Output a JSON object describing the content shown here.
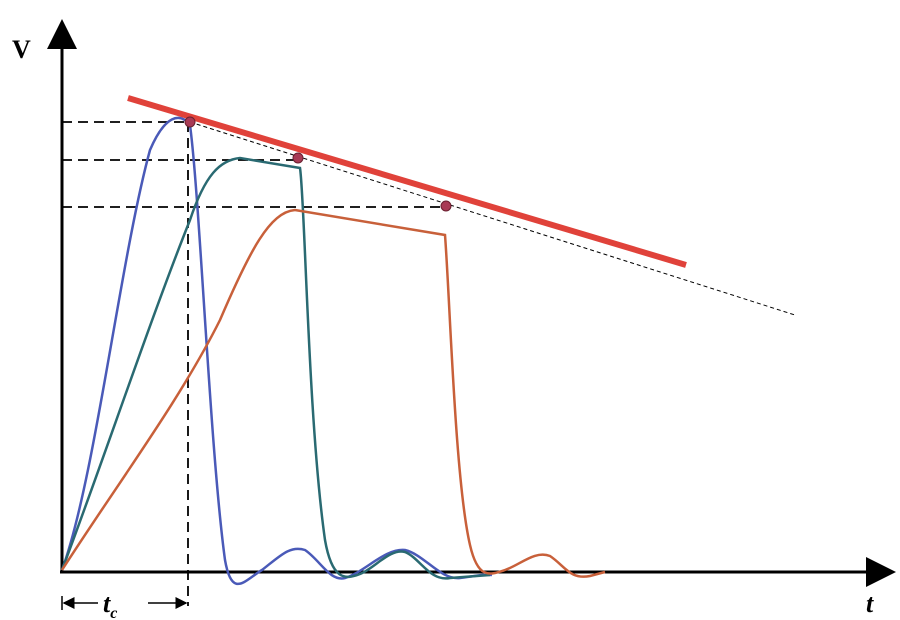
{
  "axes": {
    "y_label": "V",
    "x_label": "t"
  },
  "annotation": {
    "base": "t",
    "subscript": "c"
  }
}
